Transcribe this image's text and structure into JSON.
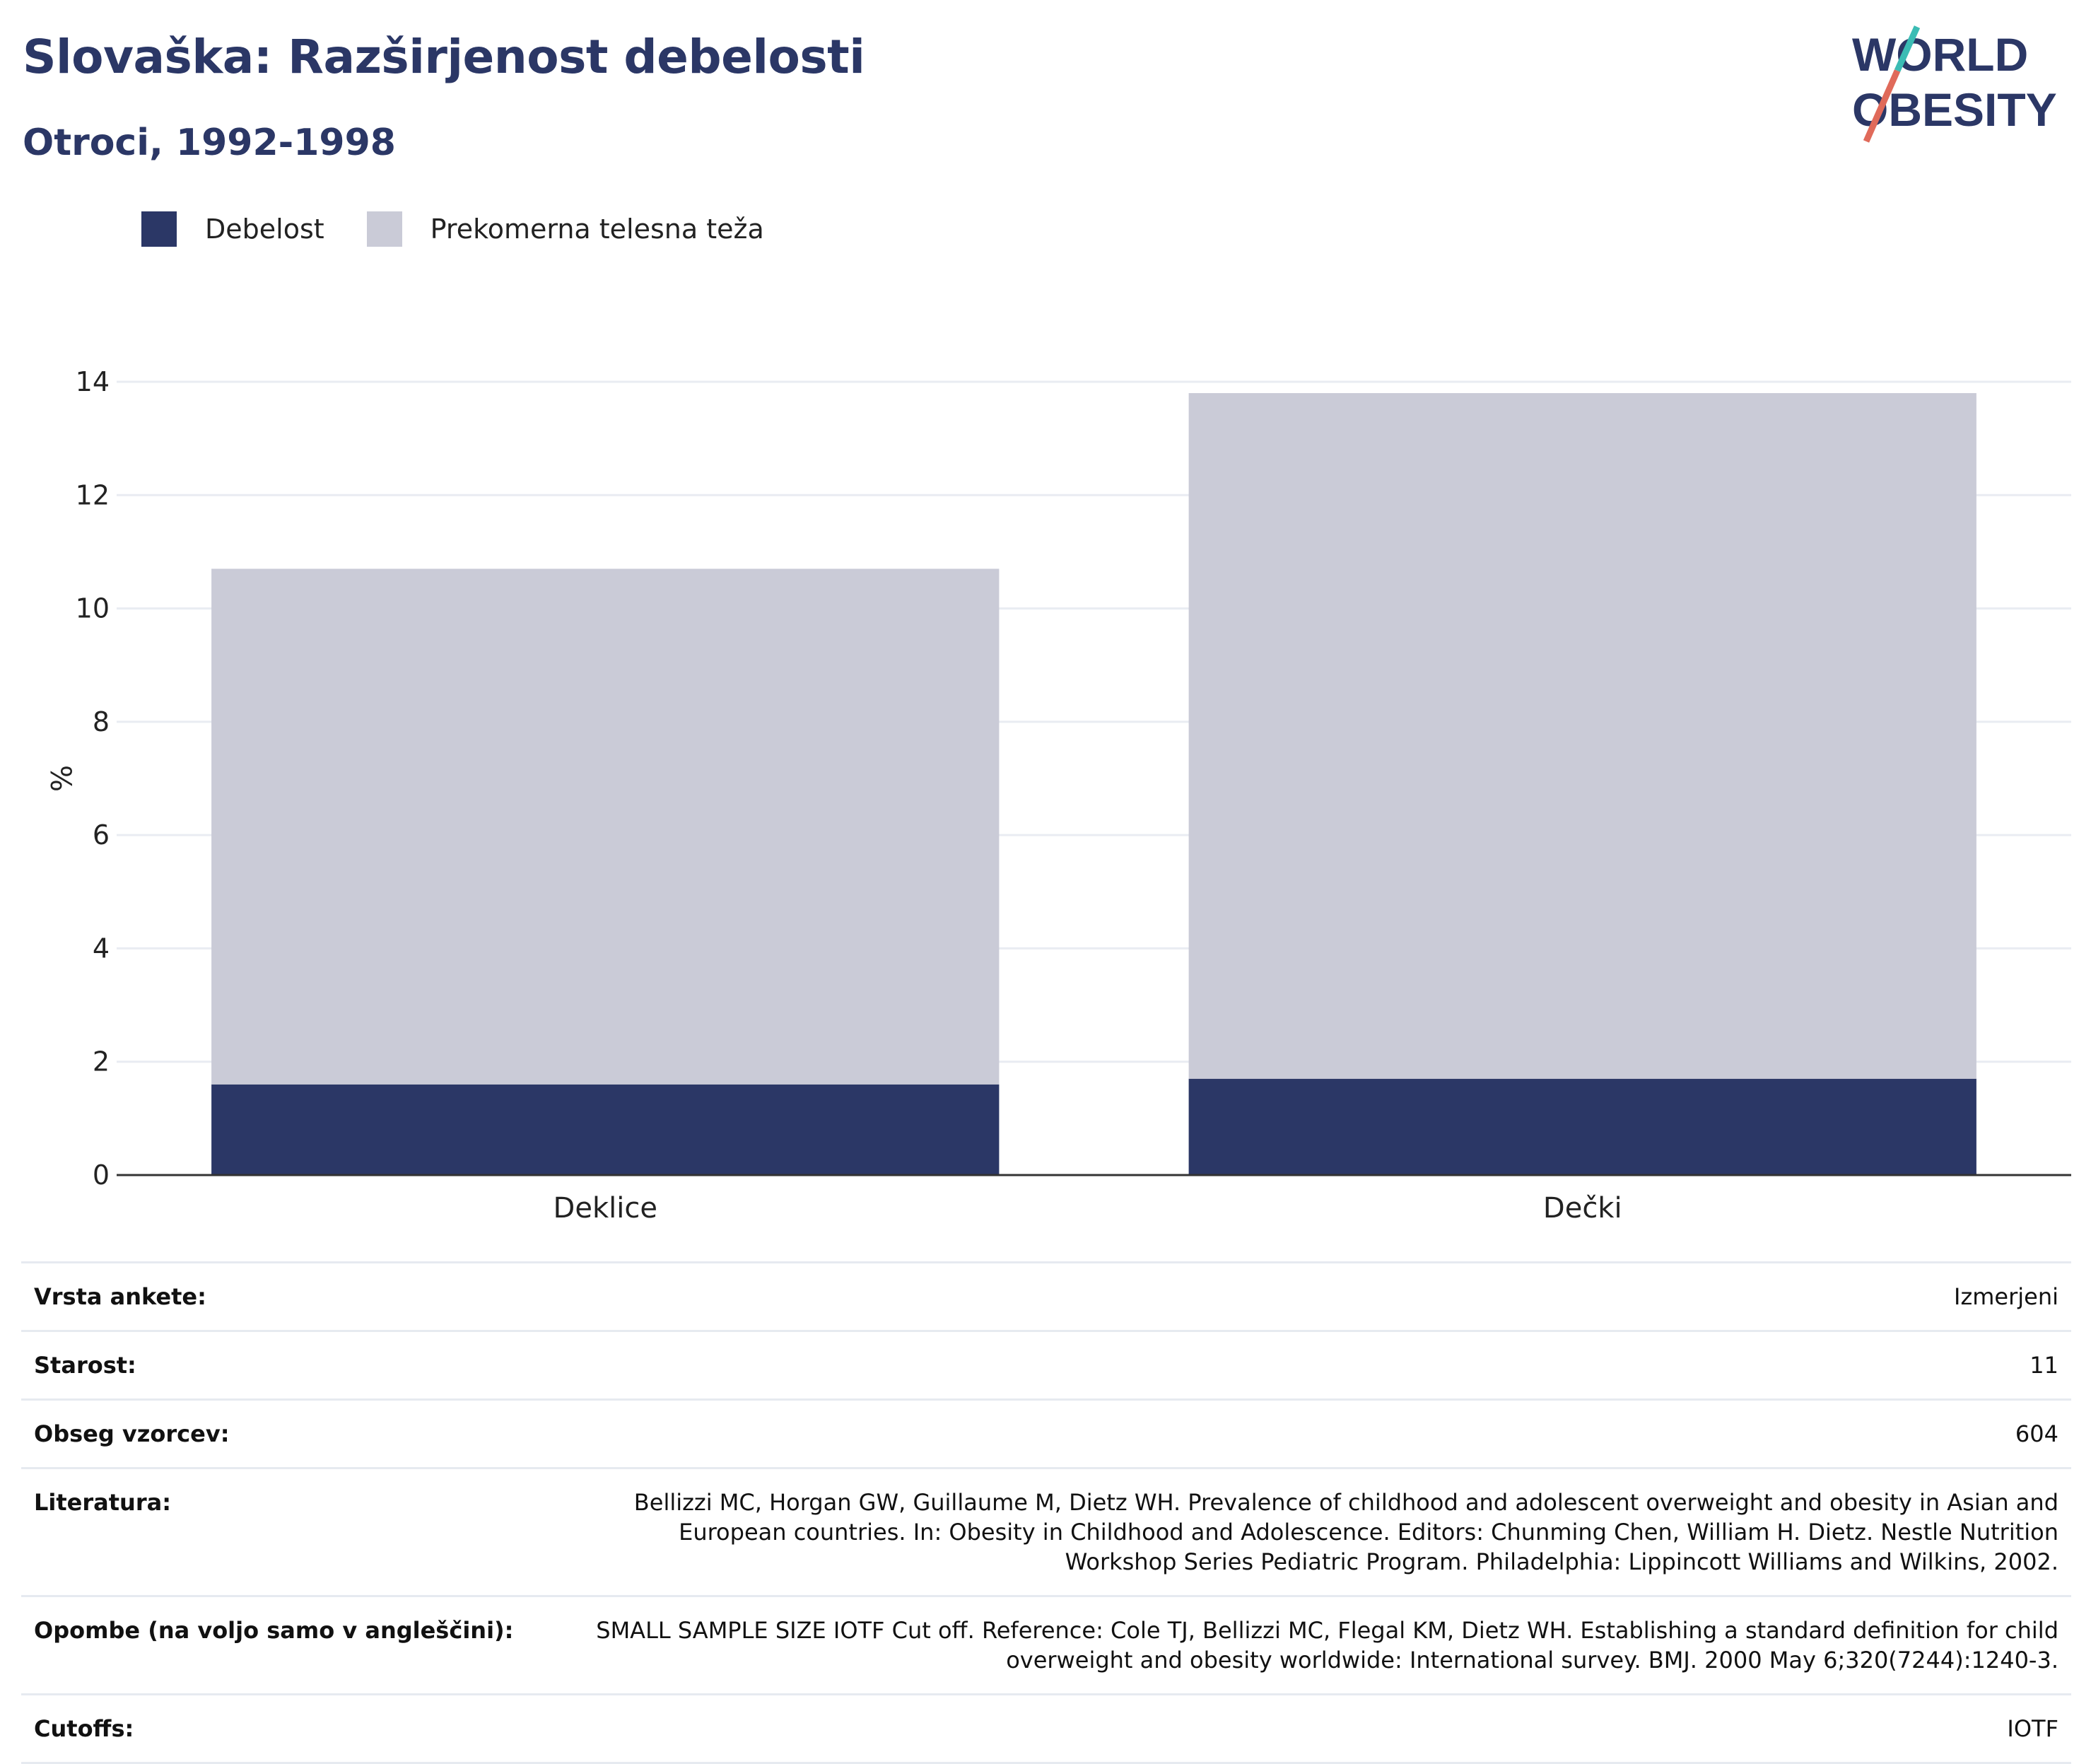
{
  "title": "Slovaška: Razširjenost debelosti",
  "subtitle": "Otroci, 1992-1998",
  "logo": {
    "line1": "WORLD",
    "line2": "OBESITY"
  },
  "colors": {
    "obesity": "#2b3766",
    "overweight": "#cacbd7",
    "title": "#2b3766",
    "logo_teal": "#3bbcb4",
    "logo_coral": "#e06a5a",
    "grid": "#e9ecf2",
    "axis": "#333333"
  },
  "chart_data": {
    "type": "bar",
    "stacked": true,
    "categories": [
      "Deklice",
      "Dečki"
    ],
    "series": [
      {
        "name": "Debelost",
        "values": [
          1.6,
          1.7
        ]
      },
      {
        "name": "Prekomerna telesna teža",
        "values": [
          9.1,
          12.1
        ]
      }
    ],
    "ylabel": "%",
    "ylim": [
      0,
      14
    ],
    "yticks": [
      0,
      2,
      4,
      6,
      8,
      10,
      12,
      14
    ],
    "grid": true,
    "legend": "top-left"
  },
  "info_table": [
    {
      "key": "Vrsta ankete:",
      "value": "Izmerjeni"
    },
    {
      "key": "Starost:",
      "value": "11"
    },
    {
      "key": "Obseg vzorcev:",
      "value": "604"
    },
    {
      "key": "Literatura:",
      "value": "Bellizzi MC, Horgan GW, Guillaume M, Dietz WH. Prevalence of childhood and adolescent overweight and obesity in Asian and European countries. In: Obesity in Childhood and Adolescence. Editors: Chunming Chen, William H. Dietz. Nestle Nutrition Workshop Series Pediatric Program. Philadelphia: Lippincott Williams and Wilkins, 2002."
    },
    {
      "key": "Opombe (na voljo samo v angleščini):",
      "value": "SMALL SAMPLE SIZE IOTF Cut off. Reference: Cole TJ, Bellizzi MC, Flegal KM, Dietz WH. Establishing a standard definition for child overweight and obesity worldwide: International survey. BMJ. 2000 May 6;320(7244):1240-3."
    },
    {
      "key": "Cutoffs:",
      "value": "IOTF"
    }
  ]
}
